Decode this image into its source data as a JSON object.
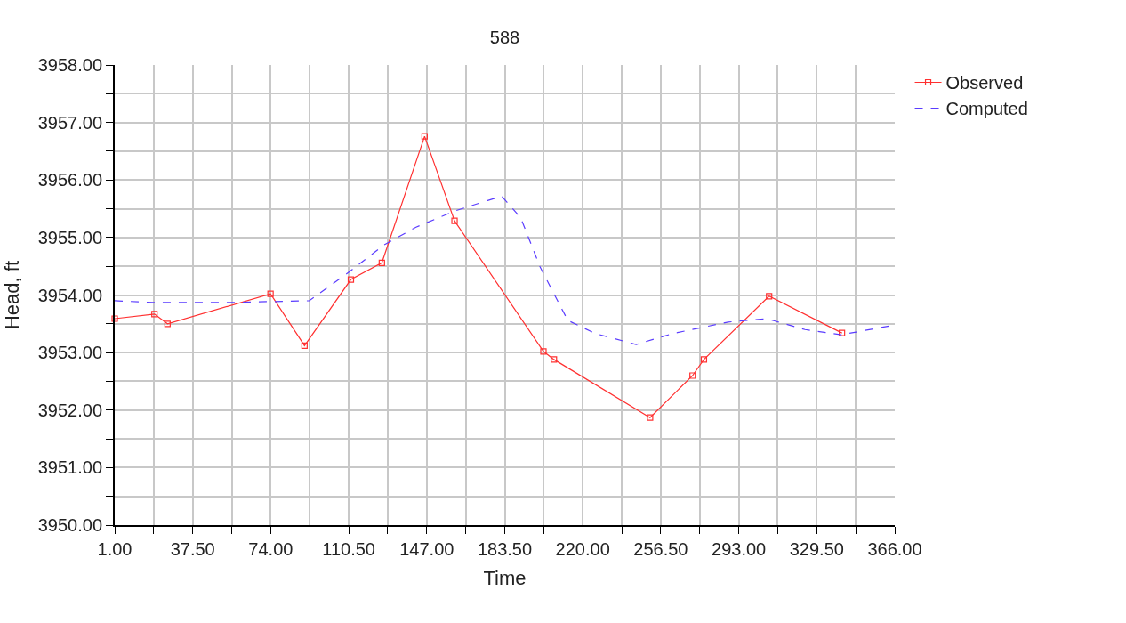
{
  "chart_data": {
    "type": "line",
    "title": "588",
    "xlabel": "Time",
    "ylabel": "Head, ft",
    "xlim": [
      1,
      366
    ],
    "ylim": [
      3950,
      3958
    ],
    "xticks": [
      {
        "value": 1,
        "label": "1.00"
      },
      {
        "value": 19.25,
        "label": null
      },
      {
        "value": 37.5,
        "label": "37.50"
      },
      {
        "value": 55.75,
        "label": null
      },
      {
        "value": 74,
        "label": "74.00"
      },
      {
        "value": 92.25,
        "label": null
      },
      {
        "value": 110.5,
        "label": "110.50"
      },
      {
        "value": 128.75,
        "label": null
      },
      {
        "value": 147,
        "label": "147.00"
      },
      {
        "value": 165.25,
        "label": null
      },
      {
        "value": 183.5,
        "label": "183.50"
      },
      {
        "value": 201.75,
        "label": null
      },
      {
        "value": 220,
        "label": "220.00"
      },
      {
        "value": 238.25,
        "label": null
      },
      {
        "value": 256.5,
        "label": "256.50"
      },
      {
        "value": 274.75,
        "label": null
      },
      {
        "value": 293,
        "label": "293.00"
      },
      {
        "value": 311.25,
        "label": null
      },
      {
        "value": 329.5,
        "label": "329.50"
      },
      {
        "value": 347.75,
        "label": null
      },
      {
        "value": 366,
        "label": "366.00"
      }
    ],
    "yticks": [
      {
        "value": 3950,
        "label": "3950.00"
      },
      {
        "value": 3950.5,
        "label": null
      },
      {
        "value": 3951,
        "label": "3951.00"
      },
      {
        "value": 3951.5,
        "label": null
      },
      {
        "value": 3952,
        "label": "3952.00"
      },
      {
        "value": 3952.5,
        "label": null
      },
      {
        "value": 3953,
        "label": "3953.00"
      },
      {
        "value": 3953.5,
        "label": null
      },
      {
        "value": 3954,
        "label": "3954.00"
      },
      {
        "value": 3954.5,
        "label": null
      },
      {
        "value": 3955,
        "label": "3955.00"
      },
      {
        "value": 3955.5,
        "label": null
      },
      {
        "value": 3956,
        "label": "3956.00"
      },
      {
        "value": 3956.5,
        "label": null
      },
      {
        "value": 3957,
        "label": "3957.00"
      },
      {
        "value": 3957.5,
        "label": null
      },
      {
        "value": 3958,
        "label": "3958.00"
      }
    ],
    "grid": true,
    "legend": "top right",
    "series": [
      {
        "name": "Observed",
        "color": "#ff3030",
        "marker": "square",
        "line_style": "solid",
        "x": [
          1,
          19.6,
          25.7,
          73.9,
          89.8,
          111.5,
          126,
          146,
          160,
          201.6,
          206.5,
          251.5,
          271.4,
          276.7,
          307.2,
          341.3
        ],
        "values": [
          3953.59,
          3953.67,
          3953.5,
          3954.02,
          3953.12,
          3954.27,
          3954.56,
          3956.76,
          3955.29,
          3953.02,
          3952.88,
          3951.87,
          3952.6,
          3952.88,
          3953.98,
          3953.34
        ]
      },
      {
        "name": "Computed",
        "color": "#5a3cff",
        "marker": "none",
        "line_style": "dashed",
        "x": [
          1,
          19,
          54,
          92,
          111,
          127,
          142,
          160,
          182,
          191,
          200,
          213,
          226,
          245,
          262,
          288,
          306,
          324,
          341,
          366
        ],
        "values": [
          3953.9,
          3953.87,
          3953.87,
          3953.9,
          3954.41,
          3954.87,
          3955.18,
          3955.46,
          3955.72,
          3955.34,
          3954.49,
          3953.56,
          3953.33,
          3953.14,
          3953.33,
          3953.53,
          3953.59,
          3953.4,
          3953.31,
          3953.48
        ]
      }
    ]
  }
}
